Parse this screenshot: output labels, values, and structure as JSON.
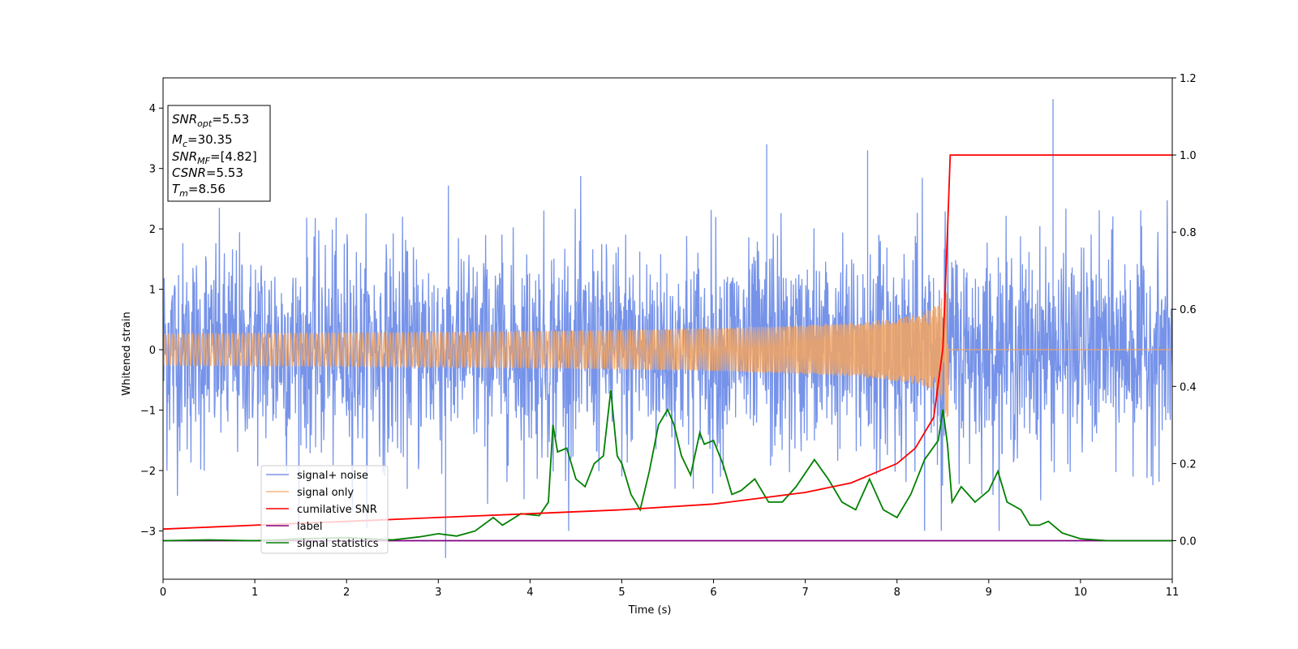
{
  "chart_data": {
    "type": "line",
    "xlabel": "Time (s)",
    "ylabel": "Whitened strain",
    "xlim": [
      0,
      11
    ],
    "ylim": [
      -3.8,
      4.5
    ],
    "y2lim": [
      -0.1,
      1.2
    ],
    "x_ticks": [
      "0",
      "1",
      "2",
      "3",
      "4",
      "5",
      "6",
      "7",
      "8",
      "9",
      "10",
      "11"
    ],
    "y_ticks": [
      "−3",
      "−2",
      "−1",
      "0",
      "1",
      "2",
      "3",
      "4"
    ],
    "y2_ticks": [
      "0.0",
      "0.2",
      "0.4",
      "0.6",
      "0.8",
      "1.0",
      "1.2"
    ],
    "grid": false,
    "legend_position": "lower-left",
    "info_box": {
      "snr_opt": {
        "base": "SNR",
        "sub": "opt",
        "value": "=5.53"
      },
      "mc": {
        "base": "M",
        "sub": "c",
        "value": "=30.35"
      },
      "snr_mf": {
        "base": "SNR",
        "sub": "MF",
        "value": "=[4.82]"
      },
      "csnr": {
        "base": "CSNR",
        "value": "=5.53"
      },
      "tm": {
        "base": "T",
        "sub": "m",
        "value": "=8.56"
      }
    },
    "series": [
      {
        "name": "signal+ noise",
        "axis": "left",
        "color": "#4169e1",
        "description": "whitened strain noise, approx. range −2.5..2.5 with spikes",
        "peaks": [
          {
            "x": 9.7,
            "y": 4.15
          },
          {
            "x": 6.58,
            "y": 3.4
          },
          {
            "x": 7.68,
            "y": 3.3
          },
          {
            "x": 3.08,
            "y": -3.45
          },
          {
            "x": 4.88,
            "y": -0.65
          }
        ]
      },
      {
        "name": "signal only",
        "axis": "left",
        "color": "#f4a460",
        "chirp": {
          "start": 0,
          "merger": 8.56,
          "peak_amplitude": 1.8
        }
      },
      {
        "name": "cumilative SNR",
        "axis": "right",
        "color": "#ff0000",
        "x": [
          0,
          1,
          2,
          3,
          4,
          5,
          6,
          7,
          7.5,
          8,
          8.2,
          8.4,
          8.5,
          8.55,
          8.58,
          11
        ],
        "y": [
          0.03,
          0.04,
          0.05,
          0.06,
          0.07,
          0.08,
          0.095,
          0.125,
          0.15,
          0.2,
          0.24,
          0.32,
          0.5,
          0.8,
          1.0,
          1.0
        ]
      },
      {
        "name": "label",
        "axis": "right",
        "color": "#800080",
        "x": [
          0,
          11
        ],
        "y": [
          0,
          0
        ]
      },
      {
        "name": "signal statistics",
        "axis": "right",
        "color": "#008000",
        "x": [
          0,
          0.5,
          1,
          1.5,
          2,
          2.5,
          2.8,
          3.0,
          3.2,
          3.4,
          3.6,
          3.7,
          3.9,
          4.1,
          4.2,
          4.25,
          4.3,
          4.4,
          4.5,
          4.6,
          4.7,
          4.8,
          4.88,
          4.95,
          5.0,
          5.1,
          5.2,
          5.3,
          5.4,
          5.5,
          5.57,
          5.65,
          5.75,
          5.85,
          5.9,
          6.0,
          6.1,
          6.2,
          6.3,
          6.45,
          6.6,
          6.75,
          6.9,
          7.1,
          7.25,
          7.4,
          7.55,
          7.7,
          7.85,
          8.0,
          8.15,
          8.3,
          8.45,
          8.5,
          8.55,
          8.6,
          8.7,
          8.85,
          9.0,
          9.1,
          9.2,
          9.35,
          9.45,
          9.55,
          9.65,
          9.8,
          10.0,
          10.3,
          11
        ],
        "y": [
          0.0,
          0.002,
          0.0,
          0.005,
          0.008,
          0.002,
          0.01,
          0.018,
          0.012,
          0.025,
          0.06,
          0.04,
          0.07,
          0.065,
          0.1,
          0.3,
          0.23,
          0.24,
          0.16,
          0.14,
          0.2,
          0.22,
          0.39,
          0.22,
          0.2,
          0.12,
          0.08,
          0.18,
          0.3,
          0.34,
          0.3,
          0.22,
          0.17,
          0.28,
          0.25,
          0.26,
          0.2,
          0.12,
          0.13,
          0.16,
          0.1,
          0.1,
          0.14,
          0.21,
          0.16,
          0.1,
          0.08,
          0.16,
          0.08,
          0.06,
          0.12,
          0.21,
          0.26,
          0.34,
          0.25,
          0.1,
          0.14,
          0.1,
          0.13,
          0.18,
          0.1,
          0.08,
          0.04,
          0.04,
          0.05,
          0.02,
          0.005,
          0.0,
          0.0
        ]
      }
    ]
  }
}
